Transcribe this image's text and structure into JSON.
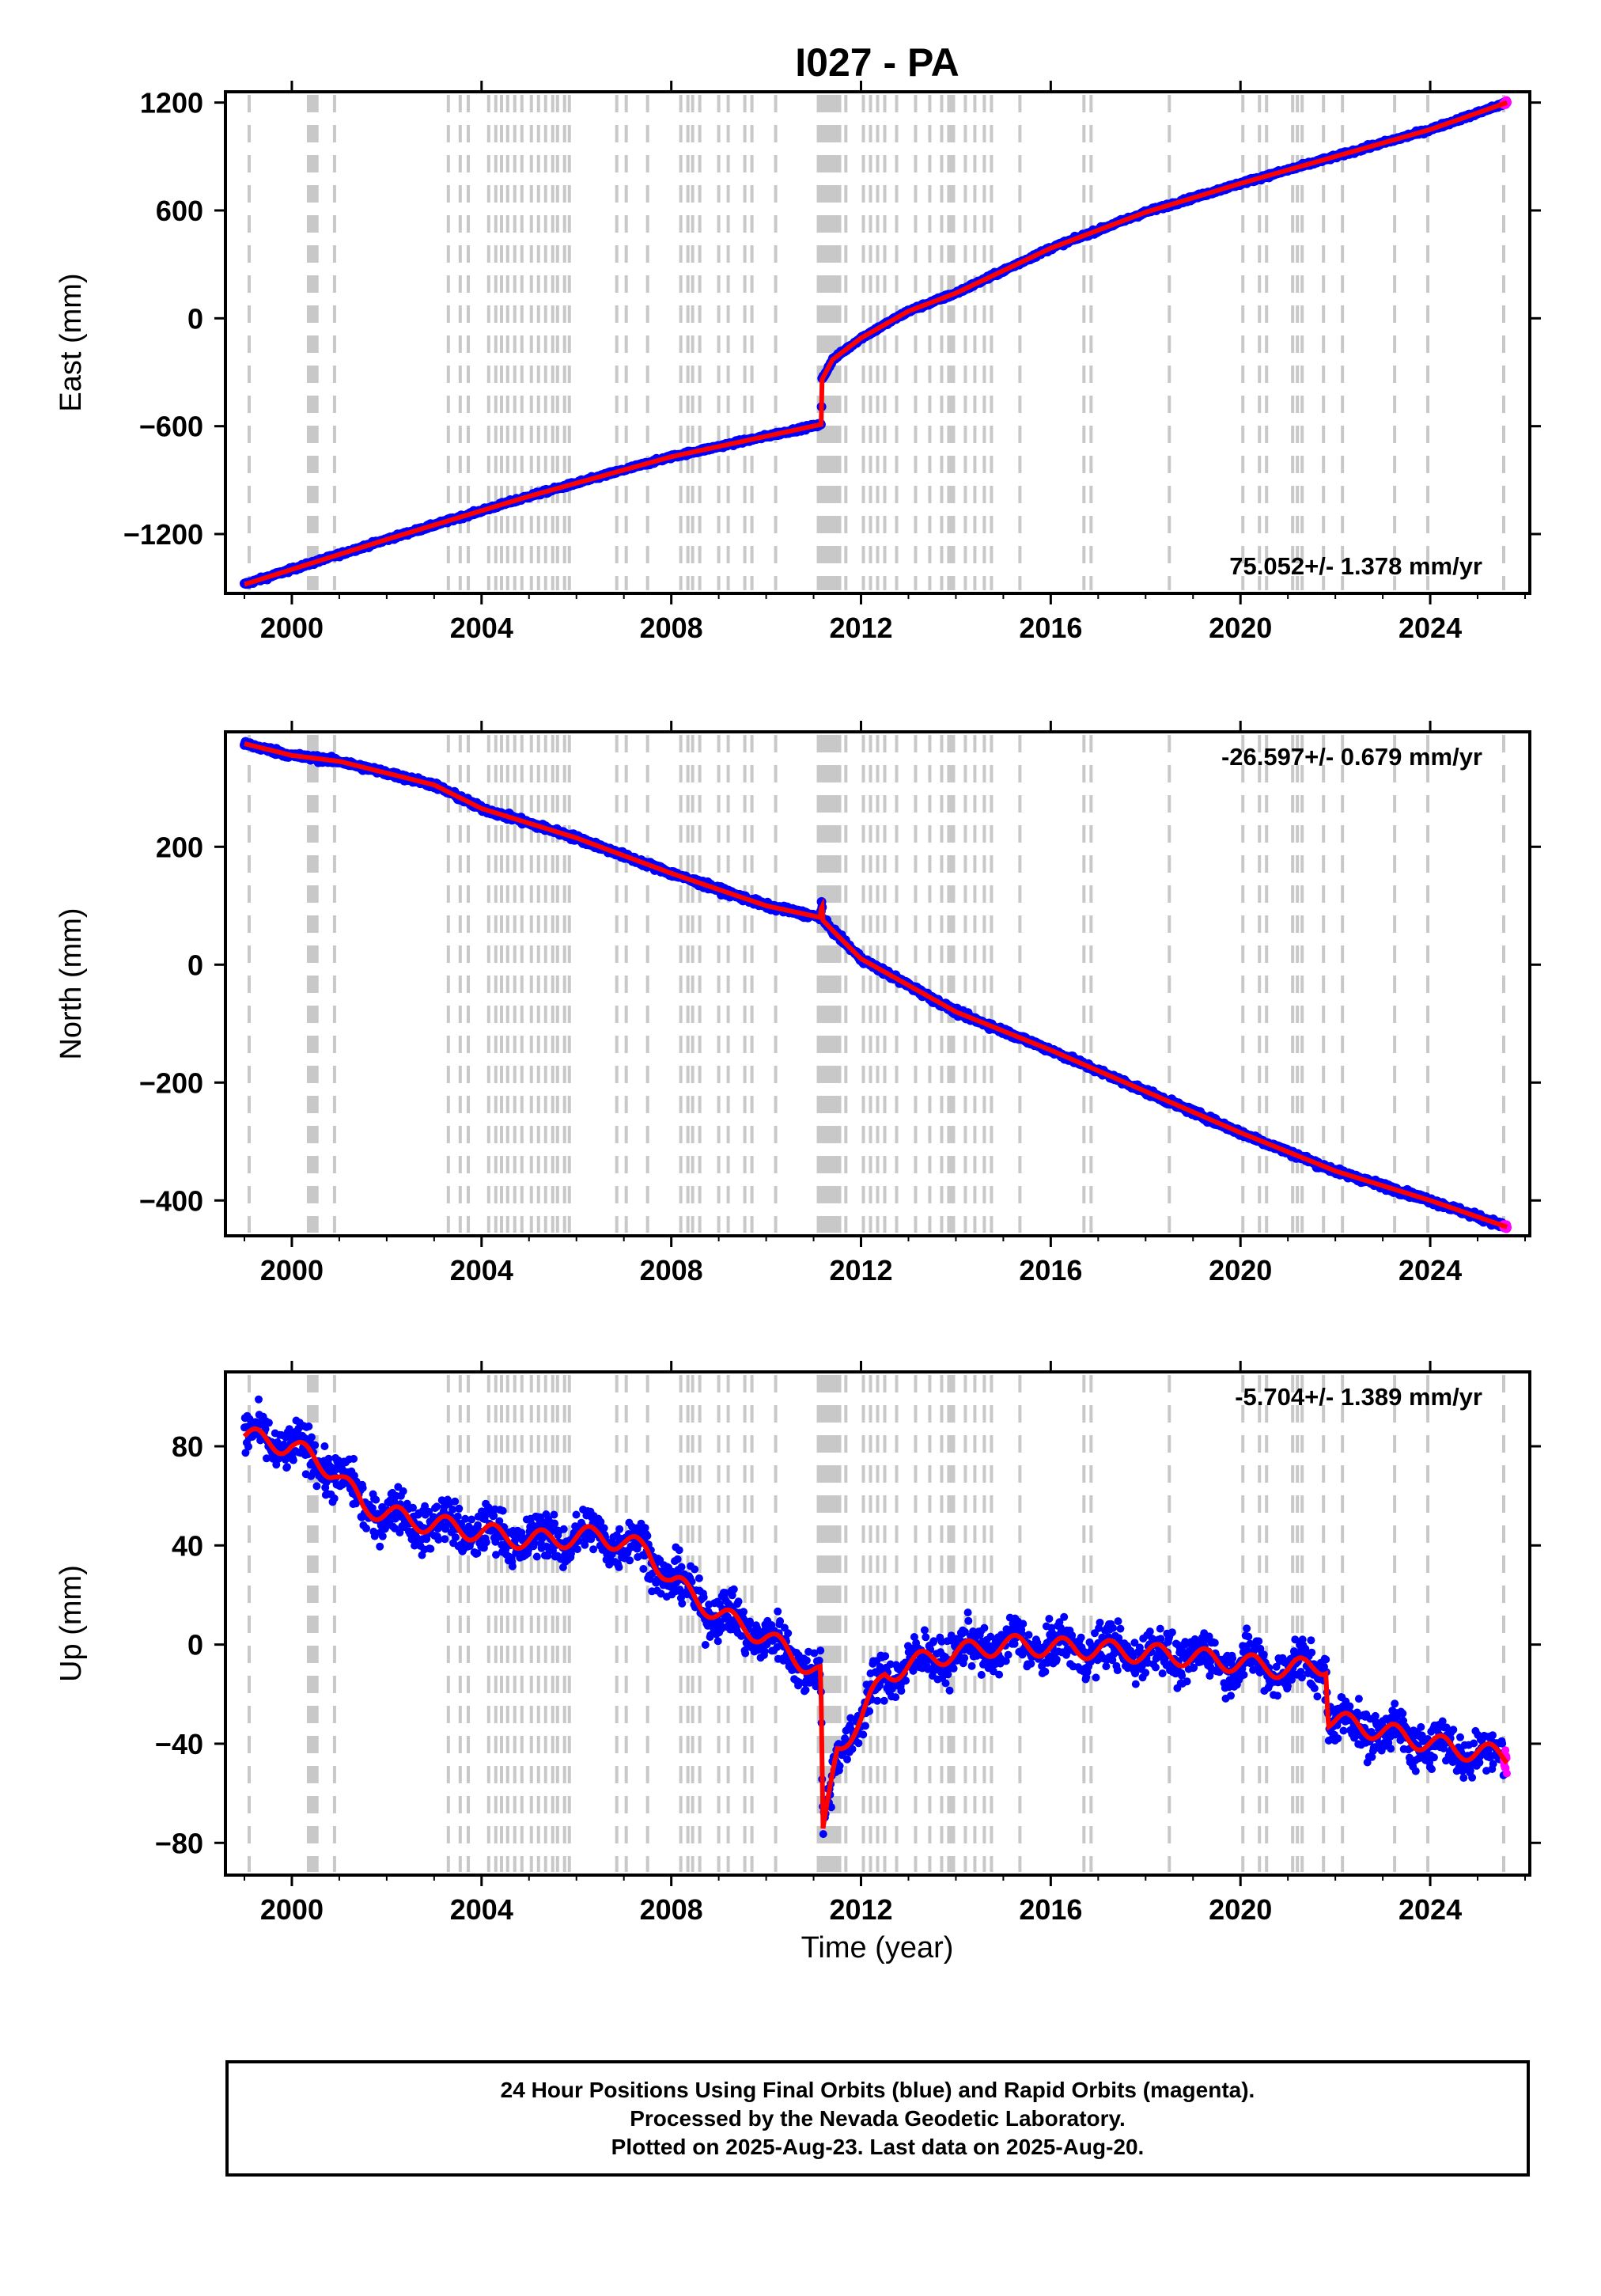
{
  "title": "I027 - PA",
  "caption": {
    "line1": "24 Hour Positions Using Final Orbits (blue) and Rapid Orbits (magenta).",
    "line2": "Processed by the Nevada Geodetic Laboratory.",
    "line3": "Plotted on 2025-Aug-23. Last data on 2025-Aug-20."
  },
  "colors": {
    "final_orbits": "#0000ff",
    "rapid_orbits": "#ff00ff",
    "trend_line": "#ff0000",
    "event_lines": "#c8c8c8",
    "axes": "#000000"
  },
  "xlabel": "Time (year)",
  "chart_data": [
    {
      "type": "scatter",
      "ylabel": "East (mm)",
      "xlim": [
        1998.6,
        2026.1
      ],
      "ylim": [
        -1530,
        1260
      ],
      "yticks": [
        -1200,
        -600,
        0,
        600,
        1200
      ],
      "yticklabels": [
        "−1200",
        "−600",
        "0",
        "600",
        "1200"
      ],
      "xticks": [
        2000,
        2004,
        2008,
        2012,
        2016,
        2020,
        2024
      ],
      "xticklabels": [
        "2000",
        "2004",
        "2008",
        "2012",
        "2016",
        "2020",
        "2024"
      ],
      "rate_label": "75.052+/- 1.378 mm/yr",
      "rate_position": "bottom-right",
      "trend_breakpoints": [
        [
          1999.0,
          -1480
        ],
        [
          2002.0,
          -1230
        ],
        [
          2005.0,
          -990
        ],
        [
          2008.0,
          -770
        ],
        [
          2011.16,
          -590
        ],
        [
          2011.18,
          -340
        ],
        [
          2011.4,
          -230
        ],
        [
          2012.0,
          -110
        ],
        [
          2013.0,
          40
        ],
        [
          2014.0,
          140
        ],
        [
          2016.0,
          390
        ],
        [
          2018.0,
          590
        ],
        [
          2020.0,
          750
        ],
        [
          2022.0,
          900
        ],
        [
          2024.0,
          1050
        ],
        [
          2025.62,
          1200
        ]
      ],
      "noise_mm": 7,
      "series": [
        {
          "name": "Final Orbits",
          "x_range": [
            1999.0,
            2025.55
          ],
          "values_from": "trend_breakpoints"
        },
        {
          "name": "Rapid Orbits",
          "x_range": [
            2025.55,
            2025.62
          ],
          "values_from": "trend_breakpoints"
        }
      ]
    },
    {
      "type": "scatter",
      "ylabel": "North (mm)",
      "xlim": [
        1998.6,
        2026.1
      ],
      "ylim": [
        -460,
        395
      ],
      "yticks": [
        -400,
        -200,
        0,
        200
      ],
      "yticklabels": [
        "−400",
        "−200",
        "0",
        "200"
      ],
      "xticks": [
        2000,
        2004,
        2008,
        2012,
        2016,
        2020,
        2024
      ],
      "xticklabels": [
        "2000",
        "2004",
        "2008",
        "2012",
        "2016",
        "2020",
        "2024"
      ],
      "rate_label": "-26.597+/- 0.679 mm/yr",
      "rate_position": "top-right",
      "trend_breakpoints": [
        [
          1999.0,
          375
        ],
        [
          2000.0,
          355
        ],
        [
          2001.0,
          345
        ],
        [
          2002.0,
          325
        ],
        [
          2003.0,
          305
        ],
        [
          2004.0,
          265
        ],
        [
          2006.0,
          215
        ],
        [
          2008.0,
          155
        ],
        [
          2010.0,
          100
        ],
        [
          2011.15,
          80
        ],
        [
          2011.17,
          110
        ],
        [
          2011.2,
          75
        ],
        [
          2011.5,
          50
        ],
        [
          2012.0,
          10
        ],
        [
          2014.0,
          -80
        ],
        [
          2016.0,
          -145
        ],
        [
          2018.0,
          -215
        ],
        [
          2020.0,
          -285
        ],
        [
          2022.0,
          -350
        ],
        [
          2024.0,
          -400
        ],
        [
          2025.62,
          -445
        ]
      ],
      "noise_mm": 3.5,
      "series": [
        {
          "name": "Final Orbits",
          "x_range": [
            1999.0,
            2025.55
          ],
          "values_from": "trend_breakpoints"
        },
        {
          "name": "Rapid Orbits",
          "x_range": [
            2025.55,
            2025.62
          ],
          "values_from": "trend_breakpoints"
        }
      ]
    },
    {
      "type": "scatter",
      "ylabel": "Up (mm)",
      "xlim": [
        1998.6,
        2026.1
      ],
      "ylim": [
        -93,
        110
      ],
      "yticks": [
        -80,
        -40,
        0,
        40,
        80
      ],
      "yticklabels": [
        "−80",
        "−40",
        "0",
        "40",
        "80"
      ],
      "xticks": [
        2000,
        2004,
        2008,
        2012,
        2016,
        2020,
        2024
      ],
      "xticklabels": [
        "2000",
        "2004",
        "2008",
        "2012",
        "2016",
        "2020",
        "2024"
      ],
      "rate_label": "-5.704+/- 1.389 mm/yr",
      "rate_position": "top-right",
      "trend_breakpoints": [
        [
          1999.0,
          84
        ],
        [
          2000.0,
          80
        ],
        [
          2000.9,
          70
        ],
        [
          2001.5,
          56
        ],
        [
          2002.5,
          50
        ],
        [
          2003.5,
          47
        ],
        [
          2005.0,
          42
        ],
        [
          2006.5,
          44
        ],
        [
          2007.5,
          38
        ],
        [
          2008.0,
          26
        ],
        [
          2009.0,
          12
        ],
        [
          2010.0,
          3
        ],
        [
          2011.15,
          -12
        ],
        [
          2011.2,
          -78
        ],
        [
          2011.5,
          -42
        ],
        [
          2012.0,
          -30
        ],
        [
          2012.5,
          -12
        ],
        [
          2013.5,
          -5
        ],
        [
          2015.0,
          0
        ],
        [
          2017.0,
          -2
        ],
        [
          2019.0,
          -5
        ],
        [
          2021.0,
          -10
        ],
        [
          2021.8,
          -8
        ],
        [
          2021.85,
          -30
        ],
        [
          2023.0,
          -35
        ],
        [
          2024.5,
          -42
        ],
        [
          2025.62,
          -45
        ]
      ],
      "noise_mm": 6.5,
      "series": [
        {
          "name": "Final Orbits",
          "x_range": [
            1999.0,
            2025.55
          ],
          "values_from": "trend_breakpoints"
        },
        {
          "name": "Rapid Orbits",
          "x_range": [
            2025.55,
            2025.62
          ],
          "values_from": "trend_breakpoints"
        }
      ]
    }
  ],
  "event_years": [
    1999.1,
    2000.35,
    2000.38,
    2000.41,
    2000.44,
    2000.47,
    2000.5,
    2000.53,
    2000.9,
    2003.3,
    2003.55,
    2003.72,
    2004.15,
    2004.3,
    2004.42,
    2004.55,
    2004.7,
    2004.85,
    2005.05,
    2005.2,
    2005.35,
    2005.5,
    2005.6,
    2005.75,
    2005.85,
    2006.85,
    2007.05,
    2007.5,
    2008.2,
    2008.35,
    2008.45,
    2008.6,
    2009.0,
    2009.2,
    2009.55,
    2009.7,
    2010.2,
    2011.1,
    2011.14,
    2011.18,
    2011.22,
    2011.26,
    2011.3,
    2011.34,
    2011.38,
    2011.42,
    2011.46,
    2011.5,
    2011.55,
    2011.68,
    2012.05,
    2012.2,
    2012.35,
    2012.5,
    2012.75,
    2013.15,
    2013.45,
    2013.7,
    2013.85,
    2013.9,
    2013.95,
    2014.2,
    2014.4,
    2014.6,
    2014.75,
    2015.35,
    2016.7,
    2016.85,
    2018.5,
    2020.05,
    2020.4,
    2020.55,
    2021.1,
    2021.2,
    2021.3,
    2021.75,
    2022.15,
    2023.25,
    2023.95,
    2025.55
  ]
}
